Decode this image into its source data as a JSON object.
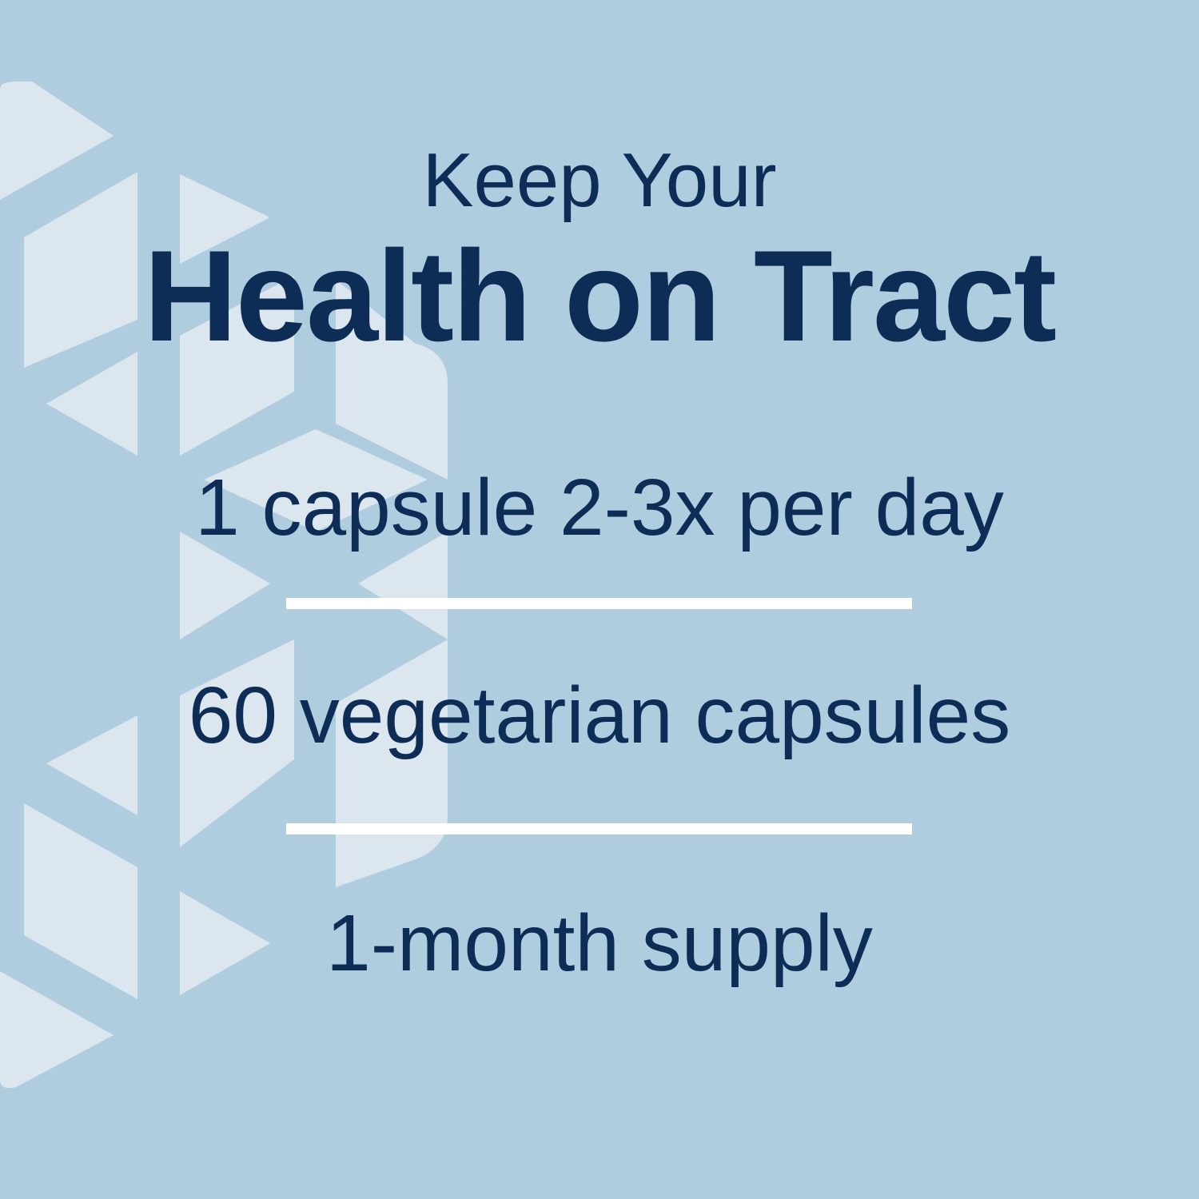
{
  "colors": {
    "background": "#b0cddf",
    "text": "#0d2d57",
    "pattern": "#dce6ee",
    "divider": "#ffffff"
  },
  "headline": {
    "kicker": "Keep Your",
    "title": "Health on Tract"
  },
  "facts": [
    {
      "text": "1 capsule 2-3x per day"
    },
    {
      "text": "60 vegetarian capsules"
    },
    {
      "text": "1-month supply"
    }
  ]
}
